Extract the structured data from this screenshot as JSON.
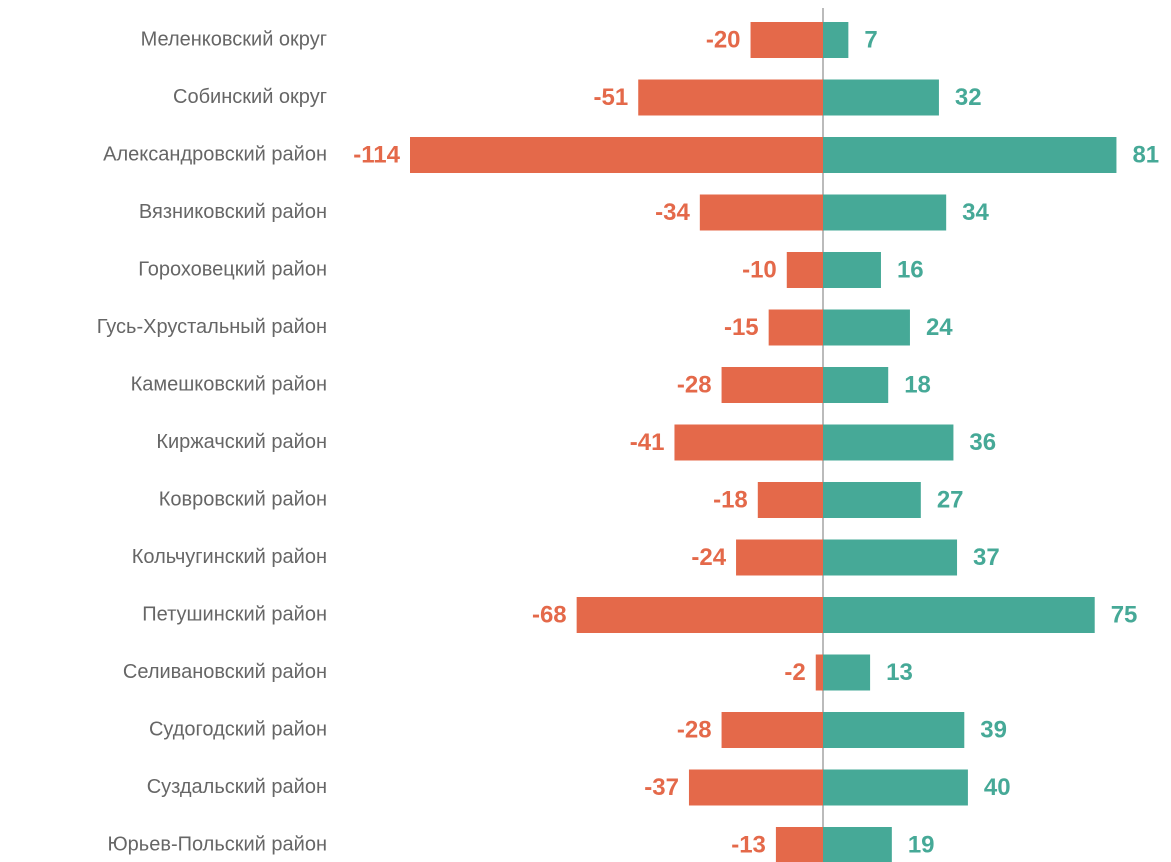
{
  "chart_data": {
    "type": "bar",
    "orientation": "horizontal",
    "categories": [
      "Меленковский округ",
      "Собинский округ",
      "Александровский район",
      "Вязниковский район",
      "Гороховецкий район",
      "Гусь-Хрустальный район",
      "Камешковский район",
      "Киржачский район",
      "Ковровский район",
      "Кольчугинский район",
      "Петушинский район",
      "Селивановский район",
      "Судогодский район",
      "Суздальский район",
      "Юрьев-Польский район"
    ],
    "series": [
      {
        "color": "#e4694a",
        "values": [
          -20,
          -51,
          -114,
          -34,
          -10,
          -15,
          -28,
          -41,
          -18,
          -24,
          -68,
          -2,
          -28,
          -37,
          -13
        ]
      },
      {
        "color": "#46a997",
        "values": [
          7,
          32,
          81,
          34,
          16,
          24,
          18,
          36,
          27,
          37,
          75,
          13,
          39,
          40,
          19
        ]
      }
    ]
  }
}
